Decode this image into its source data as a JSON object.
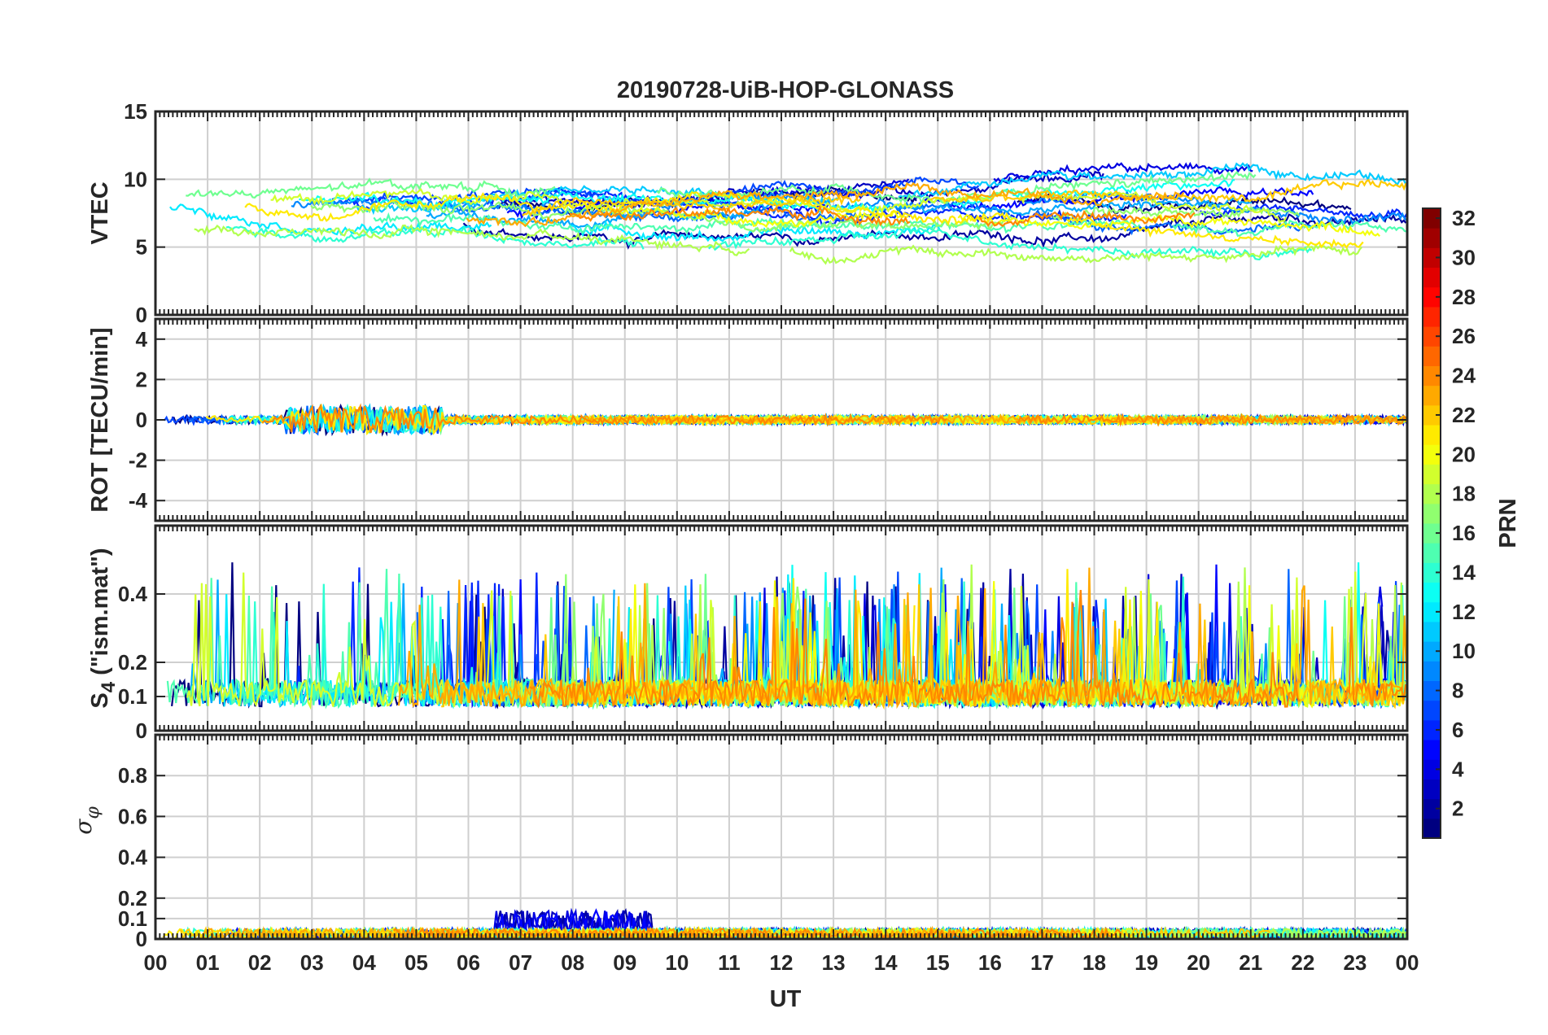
{
  "chart_data": {
    "type": "line",
    "title": "20190728-UiB-HOP-GLONASS",
    "xlabel": "UT",
    "x_tick_labels": [
      "00",
      "01",
      "02",
      "03",
      "04",
      "05",
      "06",
      "07",
      "08",
      "09",
      "10",
      "11",
      "12",
      "13",
      "14",
      "15",
      "16",
      "17",
      "18",
      "19",
      "20",
      "21",
      "22",
      "23",
      "00"
    ],
    "x_range_hours": [
      0,
      24
    ],
    "grid": true,
    "colorbar": {
      "label": "PRN",
      "range": [
        1,
        32
      ],
      "tick_labels": [
        "2",
        "4",
        "6",
        "8",
        "10",
        "12",
        "14",
        "16",
        "18",
        "20",
        "22",
        "24",
        "26",
        "28",
        "30",
        "32"
      ],
      "colormap": "jet",
      "placement": "right"
    },
    "panels": [
      {
        "id": "vtec",
        "ylabel": "VTEC",
        "ylim": [
          0,
          15
        ],
        "y_tick_labels": [
          "0",
          "5",
          "10",
          "15"
        ],
        "typical_range": [
          4,
          11
        ],
        "series_by_prn": true
      },
      {
        "id": "rot",
        "ylabel": "ROT [TECU/min]",
        "ylim": [
          -5,
          5
        ],
        "y_tick_labels": [
          "-4",
          "-2",
          "0",
          "2",
          "4"
        ],
        "typical_range": [
          -2,
          2
        ],
        "series_by_prn": true
      },
      {
        "id": "s4",
        "ylabel_main": "S",
        "ylabel_sub": "4",
        "ylabel_rest": " (\"ism.mat\")",
        "ylim": [
          0,
          0.6
        ],
        "y_tick_labels": [
          "0",
          "0.1",
          "0.2",
          "0.4"
        ],
        "typical_range": [
          0.05,
          0.6
        ],
        "series_by_prn": true
      },
      {
        "id": "sigma",
        "ylabel_main": "σ",
        "ylabel_sub": "φ",
        "ylim": [
          0,
          1
        ],
        "y_tick_labels": [
          "0",
          "0.1",
          "0.2",
          "0.4",
          "0.6",
          "0.8"
        ],
        "typical_range": [
          0,
          0.22
        ],
        "series_by_prn": true
      }
    ]
  }
}
